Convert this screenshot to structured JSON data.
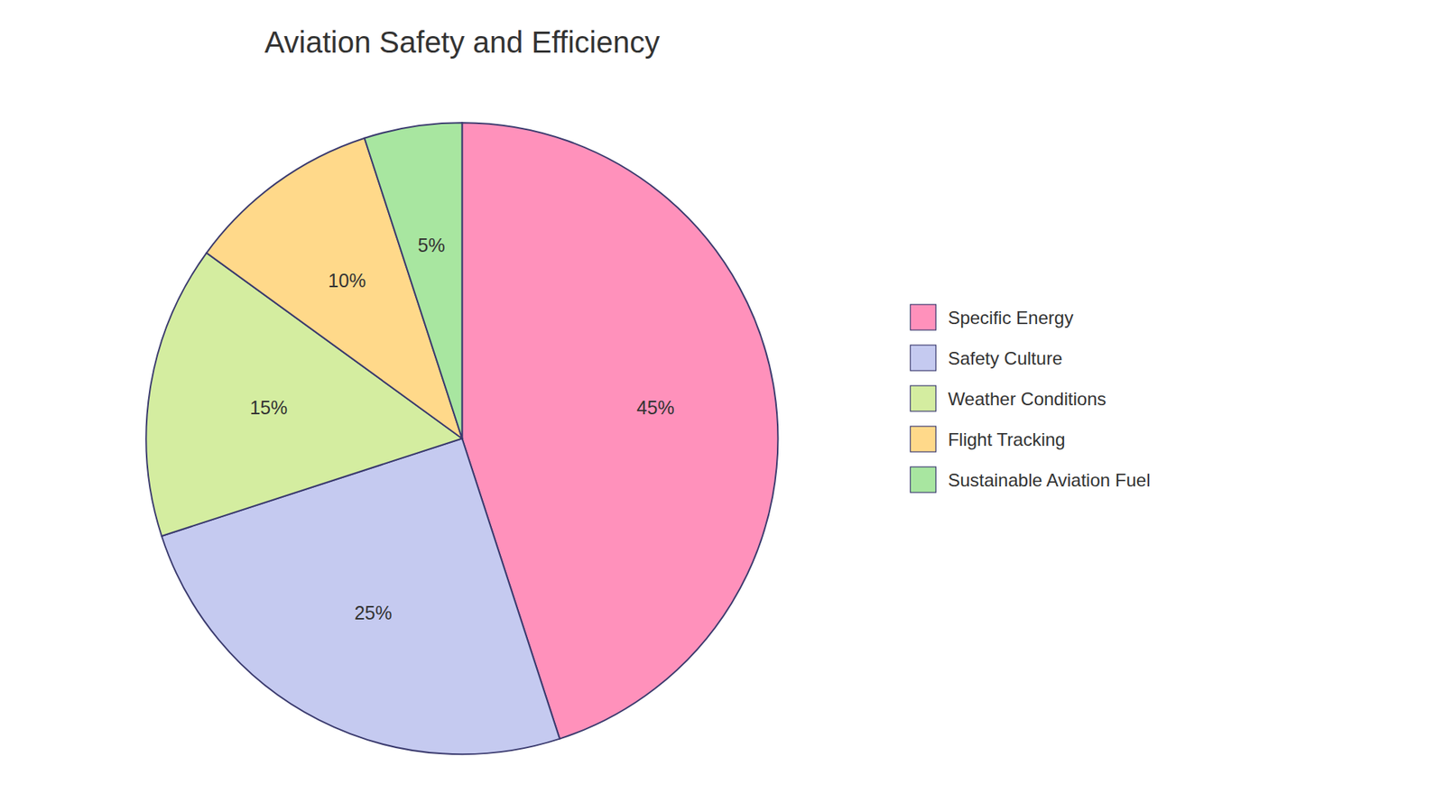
{
  "chart_data": {
    "type": "pie",
    "title": "Aviation Safety and Efficiency",
    "categories": [
      "Specific Energy",
      "Safety Culture",
      "Weather Conditions",
      "Flight Tracking",
      "Sustainable Aviation Fuel"
    ],
    "values": [
      45,
      25,
      15,
      10,
      5
    ],
    "value_labels": [
      "45%",
      "25%",
      "15%",
      "10%",
      "5%"
    ],
    "colors": [
      "#FF91BB",
      "#C5CAF0",
      "#D4EDA0",
      "#FFD98A",
      "#A8E6A0"
    ],
    "data_labels": true,
    "legend": "right"
  }
}
